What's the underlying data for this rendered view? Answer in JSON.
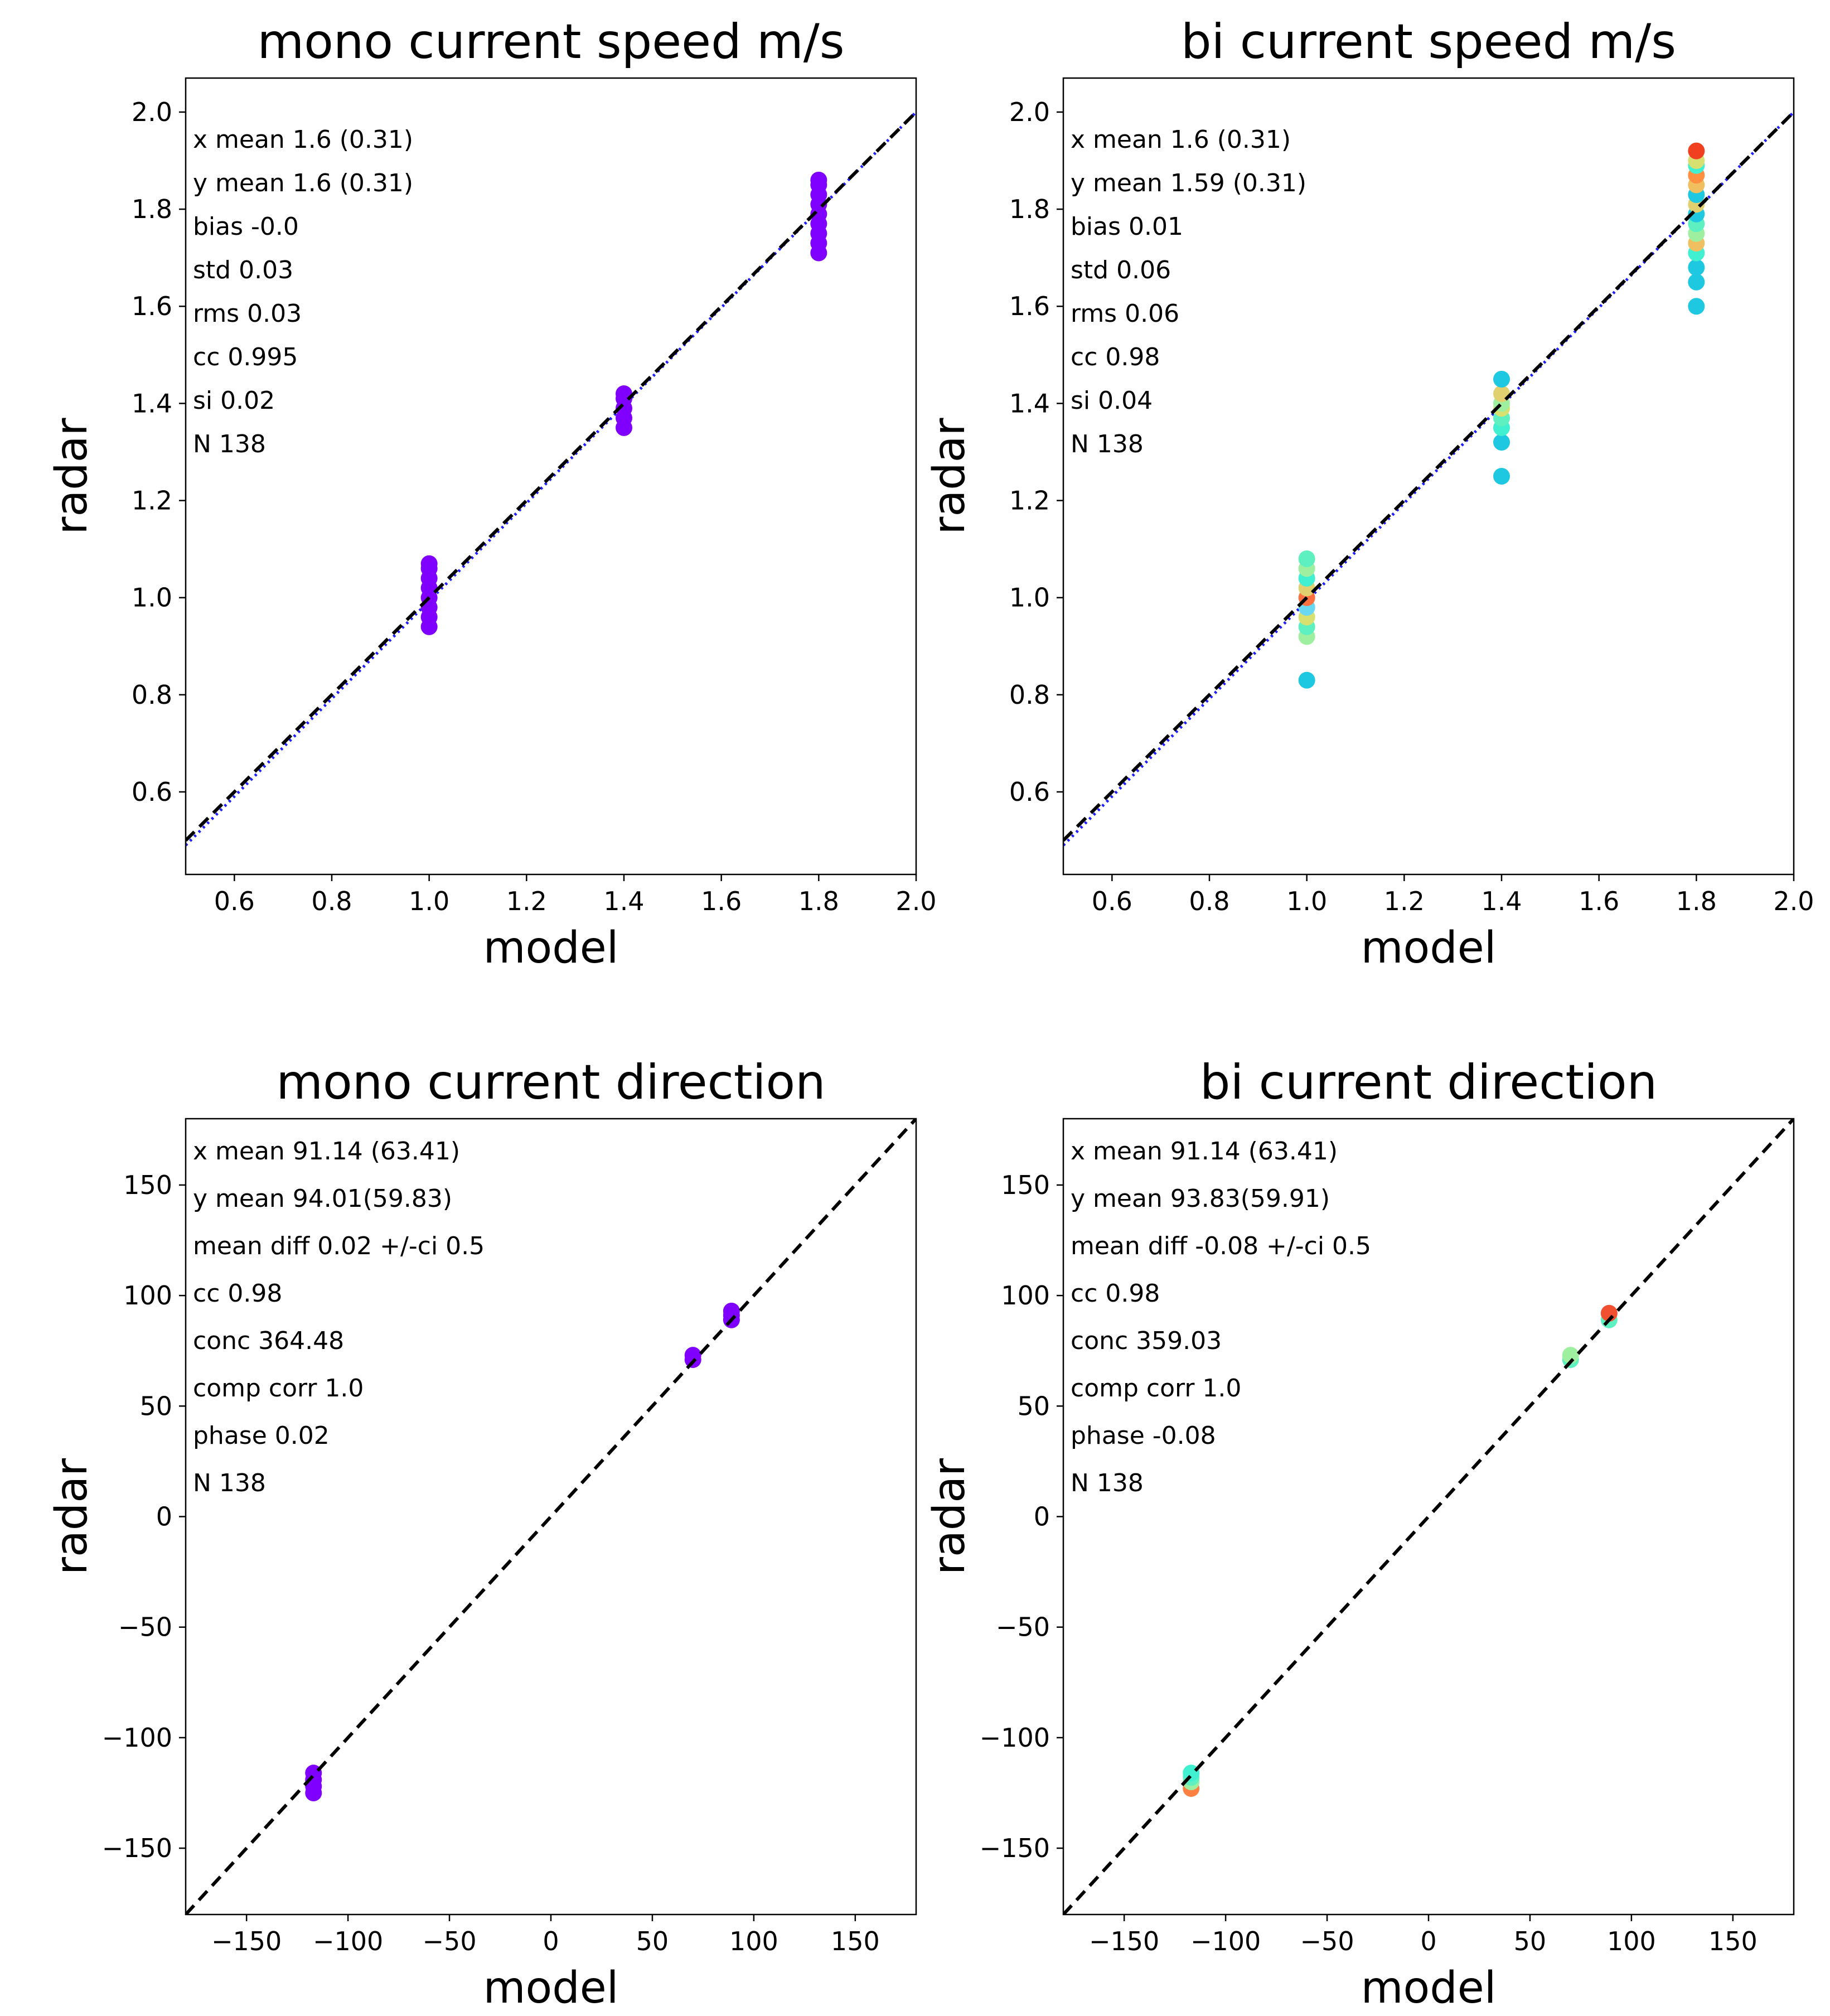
{
  "chart_data": [
    {
      "type": "scatter",
      "title": "mono current speed m/s",
      "xlabel": "model",
      "ylabel": "radar",
      "xlim": [
        0.5,
        2.0
      ],
      "ylim": [
        0.43,
        2.07
      ],
      "xticks": [
        "0.6",
        "0.8",
        "1.0",
        "1.2",
        "1.4",
        "1.6",
        "1.8",
        "2.0"
      ],
      "yticks": [
        "0.6",
        "0.8",
        "1.0",
        "1.2",
        "1.4",
        "1.6",
        "1.8",
        "2.0"
      ],
      "stats": [
        "x mean 1.6 (0.31)",
        "y mean 1.6 (0.31)",
        "bias -0.0",
        "std 0.03",
        "rms 0.03",
        "cc 0.995",
        "si 0.02",
        "N 138"
      ],
      "reference_line": {
        "style": "dashed",
        "color": "#000000",
        "from": [
          0.5,
          0.5
        ],
        "to": [
          2.0,
          2.0
        ]
      },
      "fit_line": {
        "style": "dotted",
        "color": "#1f1fff",
        "from": [
          0.5,
          0.49
        ],
        "to": [
          2.0,
          2.0
        ]
      },
      "series": [
        {
          "x": 1.0,
          "y": [
            0.94,
            0.96,
            0.98,
            1.0,
            1.02,
            1.04,
            1.06,
            1.07
          ],
          "colors": [
            "#8000ff"
          ]
        },
        {
          "x": 1.4,
          "y": [
            1.35,
            1.37,
            1.39,
            1.41,
            1.42
          ],
          "colors": [
            "#8000ff"
          ]
        },
        {
          "x": 1.8,
          "y": [
            1.71,
            1.73,
            1.75,
            1.77,
            1.79,
            1.81,
            1.83,
            1.85,
            1.86
          ],
          "colors": [
            "#8000ff"
          ]
        }
      ]
    },
    {
      "type": "scatter",
      "title": "bi current speed m/s",
      "xlabel": "model",
      "ylabel": "radar",
      "xlim": [
        0.5,
        2.0
      ],
      "ylim": [
        0.43,
        2.07
      ],
      "xticks": [
        "0.6",
        "0.8",
        "1.0",
        "1.2",
        "1.4",
        "1.6",
        "1.8",
        "2.0"
      ],
      "yticks": [
        "0.6",
        "0.8",
        "1.0",
        "1.2",
        "1.4",
        "1.6",
        "1.8",
        "2.0"
      ],
      "stats": [
        "x mean 1.6 (0.31)",
        "y mean 1.59 (0.31)",
        "bias 0.01",
        "std 0.06",
        "rms 0.06",
        "cc 0.98",
        "si 0.04",
        "N 138"
      ],
      "reference_line": {
        "style": "dashed",
        "color": "#000000",
        "from": [
          0.5,
          0.5
        ],
        "to": [
          2.0,
          2.0
        ]
      },
      "fit_line": {
        "style": "dotted",
        "color": "#1f1fff",
        "from": [
          0.5,
          0.49
        ],
        "to": [
          2.0,
          2.0
        ]
      },
      "series": [
        {
          "x": 1.0,
          "y": [
            0.83,
            0.92,
            0.94,
            0.96,
            0.98,
            1.0,
            1.02,
            1.04,
            1.06,
            1.08
          ],
          "colors": [
            "#1ec8e0",
            "#9ef0a0",
            "#5ef0c0",
            "#d8e070",
            "#6ad8f0",
            "#ff7040",
            "#e0d070",
            "#40f0d0",
            "#9ef0a0",
            "#5ef0c0"
          ]
        },
        {
          "x": 1.4,
          "y": [
            1.25,
            1.32,
            1.35,
            1.37,
            1.39,
            1.4,
            1.42,
            1.45
          ],
          "colors": [
            "#1ec8e0",
            "#1ec8e0",
            "#40f0d0",
            "#5ef0c0",
            "#d8e070",
            "#9ef0a0",
            "#e0d070",
            "#1ec8e0"
          ]
        },
        {
          "x": 1.8,
          "y": [
            1.6,
            1.65,
            1.68,
            1.71,
            1.73,
            1.75,
            1.77,
            1.79,
            1.81,
            1.83,
            1.85,
            1.87,
            1.89,
            1.9,
            1.92
          ],
          "colors": [
            "#1ec8e0",
            "#1ec8e0",
            "#1ec8e0",
            "#40f0d0",
            "#f0c060",
            "#9ef0a0",
            "#5ef0c0",
            "#1ec8e0",
            "#e0d070",
            "#1ec8e0",
            "#f0c060",
            "#ff9040",
            "#40f0d0",
            "#d8e070",
            "#f04020"
          ]
        }
      ]
    },
    {
      "type": "scatter",
      "title": "mono current direction",
      "xlabel": "model",
      "ylabel": "radar",
      "xlim": [
        -180,
        180
      ],
      "ylim": [
        -180,
        180
      ],
      "xticks": [
        "−150",
        "−100",
        "−50",
        "0",
        "50",
        "100",
        "150"
      ],
      "yticks": [
        "−150",
        "−100",
        "−50",
        "0",
        "50",
        "100",
        "150"
      ],
      "stats": [
        "x mean 91.14 (63.41)",
        "y mean 94.01(59.83)",
        "mean diff 0.02 +/-ci 0.5",
        "cc 0.98",
        "conc 364.48",
        "comp corr 1.0",
        "phase 0.02",
        "N 138"
      ],
      "reference_line": {
        "style": "dashed",
        "color": "#000000",
        "from": [
          -180,
          -180
        ],
        "to": [
          180,
          180
        ]
      },
      "series": [
        {
          "x": -117,
          "y": [
            -125,
            -122,
            -119,
            -116
          ],
          "colors": [
            "#8000ff"
          ]
        },
        {
          "x": 70,
          "y": [
            71,
            73
          ],
          "colors": [
            "#8000ff"
          ]
        },
        {
          "x": 89,
          "y": [
            89,
            91,
            93
          ],
          "colors": [
            "#8000ff"
          ]
        }
      ]
    },
    {
      "type": "scatter",
      "title": "bi current direction",
      "xlabel": "model",
      "ylabel": "radar",
      "xlim": [
        -180,
        180
      ],
      "ylim": [
        -180,
        180
      ],
      "xticks": [
        "−150",
        "−100",
        "−50",
        "0",
        "50",
        "100",
        "150"
      ],
      "yticks": [
        "−150",
        "−100",
        "−50",
        "0",
        "50",
        "100",
        "150"
      ],
      "stats": [
        "x mean 91.14 (63.41)",
        "y mean 93.83(59.91)",
        "mean diff -0.08 +/-ci 0.5",
        "cc 0.98",
        "conc 359.03",
        "comp corr 1.0",
        "phase -0.08",
        "N 138"
      ],
      "reference_line": {
        "style": "dashed",
        "color": "#000000",
        "from": [
          -180,
          -180
        ],
        "to": [
          180,
          180
        ]
      },
      "series": [
        {
          "x": -117,
          "y": [
            -123,
            -120,
            -118,
            -116
          ],
          "colors": [
            "#ff8040",
            "#9ef0a0",
            "#5ef0c0",
            "#40f0d0"
          ]
        },
        {
          "x": 70,
          "y": [
            71,
            73
          ],
          "colors": [
            "#5ef0c0",
            "#9ef0a0"
          ]
        },
        {
          "x": 89,
          "y": [
            89,
            92
          ],
          "colors": [
            "#5ef0c0",
            "#f05030"
          ]
        }
      ]
    }
  ]
}
